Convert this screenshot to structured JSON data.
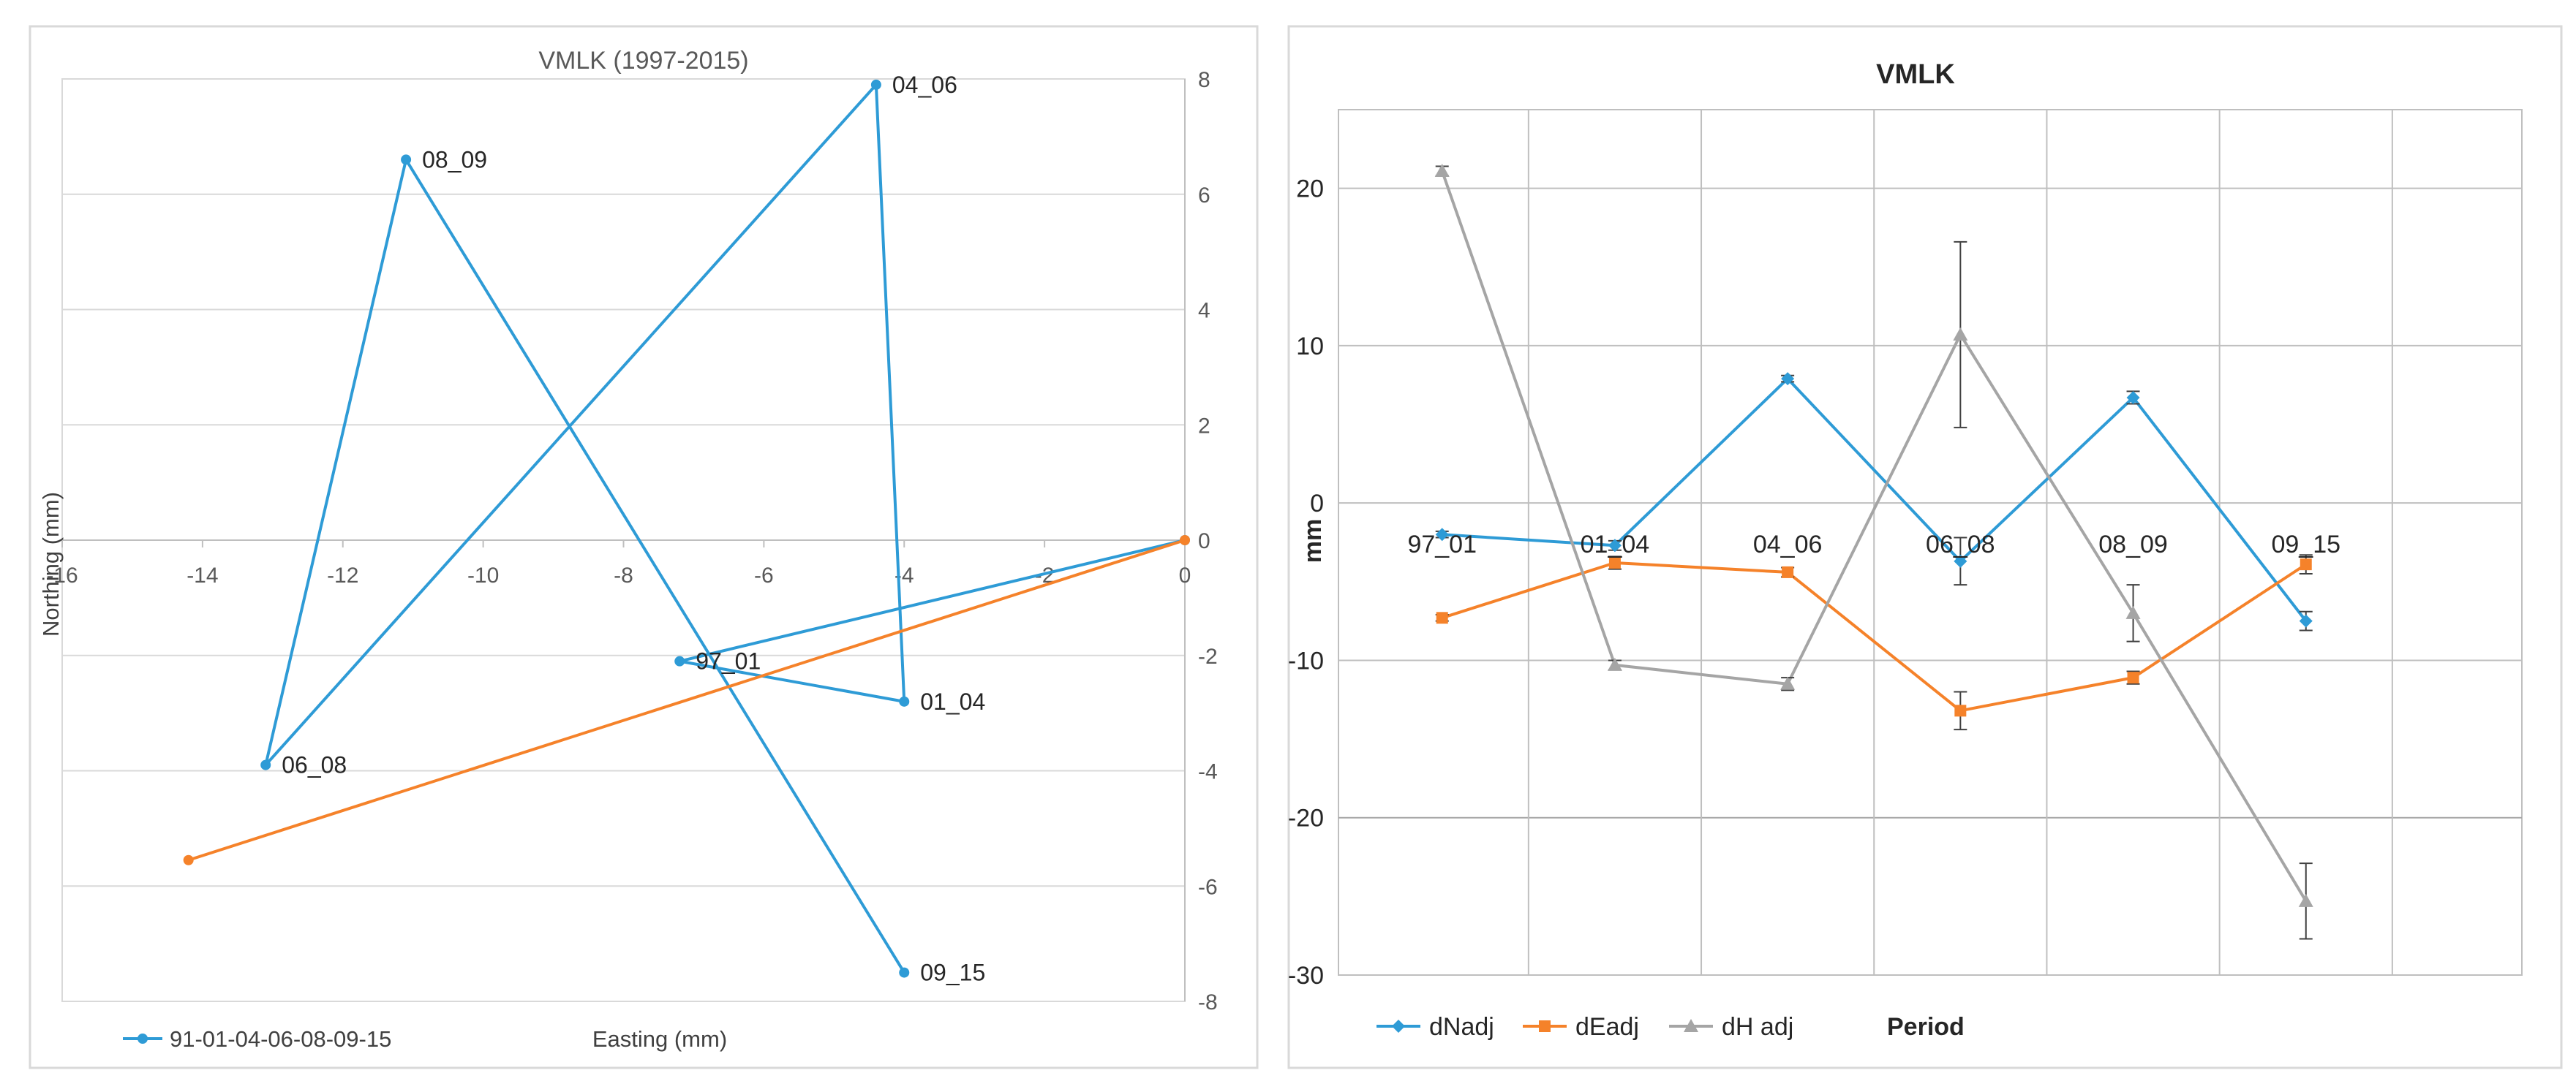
{
  "chart_data": [
    {
      "type": "scatter",
      "title": "VMLK (1997-2015)",
      "xlabel": "Easting (mm)",
      "ylabel": "Northing (mm)",
      "xlim": [
        -16,
        0
      ],
      "ylim": [
        -8,
        8
      ],
      "x_ticks": [
        -16,
        -14,
        -12,
        -10,
        -8,
        -6,
        -4,
        -2,
        0
      ],
      "y_ticks": [
        -8,
        -6,
        -4,
        -2,
        0,
        2,
        4,
        6,
        8
      ],
      "legend": "bottom-left",
      "series": [
        {
          "name": "91-01-04-06-08-09-15",
          "color": "#2E9BD6",
          "points": [
            {
              "x": 0,
              "y": 0,
              "label": ""
            },
            {
              "x": -7.2,
              "y": -2.1,
              "label": "97_01"
            },
            {
              "x": -4,
              "y": -2.8,
              "label": "01_04"
            },
            {
              "x": -4.4,
              "y": 7.9,
              "label": "04_06"
            },
            {
              "x": -13.1,
              "y": -3.9,
              "label": "06_08"
            },
            {
              "x": -11.1,
              "y": 6.6,
              "label": "08_09"
            },
            {
              "x": -4,
              "y": -7.5,
              "label": "09_15"
            }
          ]
        },
        {
          "name": "",
          "color": "#F5822A",
          "points": [
            {
              "x": 0,
              "y": 0
            },
            {
              "x": -14.2,
              "y": -5.55
            }
          ]
        }
      ]
    },
    {
      "type": "line",
      "title": "VMLK",
      "xlabel": "Period",
      "ylabel": "mm",
      "ylim": [
        -30,
        25
      ],
      "y_ticks": [
        -30,
        -20,
        -10,
        0,
        10,
        20
      ],
      "categories": [
        "97_01",
        "01_04",
        "04_06",
        "06_08",
        "08_09",
        "09_15"
      ],
      "legend": "bottom-left",
      "series": [
        {
          "name": "dNadj",
          "color": "#2E9BD6",
          "marker": "diamond",
          "values": [
            -2,
            -2.7,
            7.9,
            -3.7,
            6.7,
            -7.5
          ],
          "errors": [
            0.2,
            0.3,
            0.2,
            1.5,
            0.4,
            0.6
          ]
        },
        {
          "name": "dEadj",
          "color": "#F5822A",
          "marker": "square",
          "values": [
            -7.3,
            -3.8,
            -4.4,
            -13.2,
            -11.1,
            -3.9
          ],
          "errors": [
            0.2,
            0.4,
            0.3,
            1.2,
            0.4,
            0.6
          ]
        },
        {
          "name": "dH adj",
          "color": "#A5A5A5",
          "marker": "triangle",
          "values": [
            21.1,
            -10.3,
            -11.5,
            10.7,
            -7,
            -25.3
          ],
          "errors": [
            0.3,
            0.3,
            0.4,
            5.9,
            1.8,
            2.4
          ]
        }
      ]
    }
  ]
}
